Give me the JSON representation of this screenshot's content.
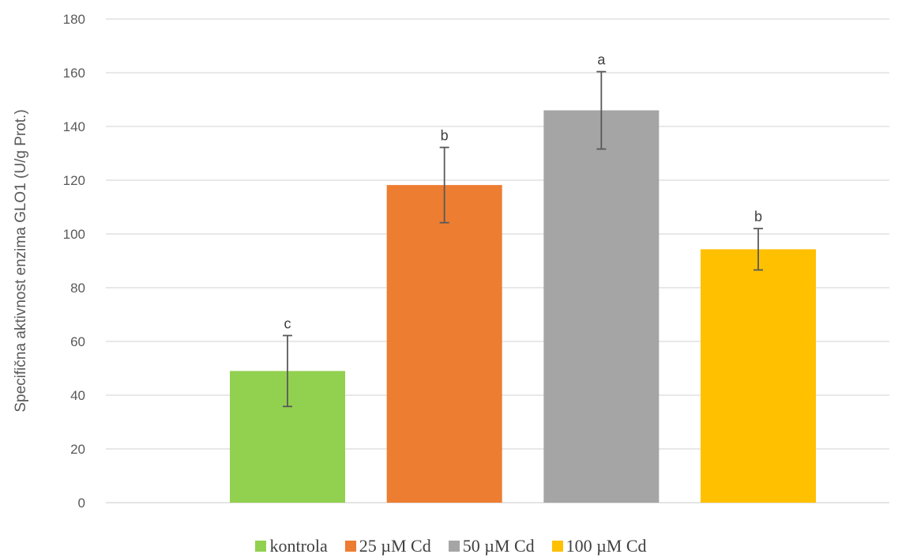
{
  "chart_data": {
    "type": "bar",
    "categories": [
      "kontrola",
      "25 µM Cd",
      "50 µM Cd",
      "100 µM Cd"
    ],
    "values": [
      49,
      118.2,
      146,
      94.3
    ],
    "errors": [
      13.2,
      14,
      14.4,
      7.7
    ],
    "significance": [
      "c",
      "b",
      "a",
      "b"
    ],
    "colors": [
      "#92d050",
      "#ed7d31",
      "#a5a5a5",
      "#ffc000"
    ],
    "title": "",
    "xlabel": "",
    "ylabel": "Specifična aktivnost enzima GLO1 (U/g Prot.)",
    "ylim": [
      0,
      180
    ],
    "yticks": [
      0,
      20,
      40,
      60,
      80,
      100,
      120,
      140,
      160,
      180
    ],
    "grid": true,
    "legend_position": "bottom"
  }
}
